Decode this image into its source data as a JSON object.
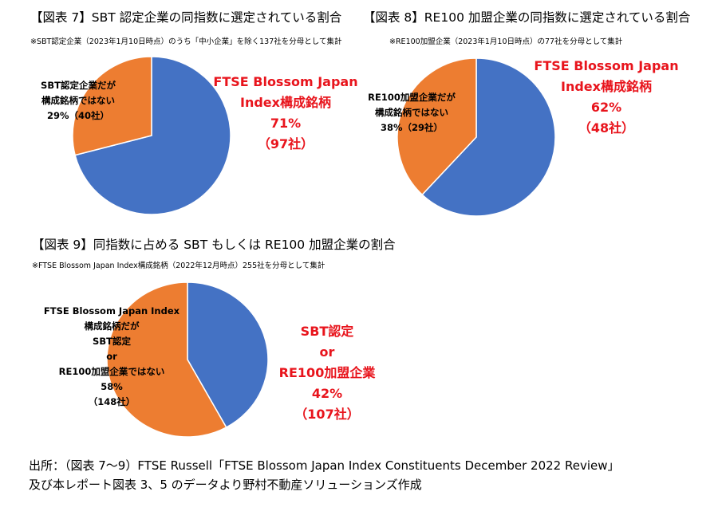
{
  "colors": {
    "blue": "#4472c4",
    "orange": "#ed7d31",
    "red": "#e8141c"
  },
  "chart_data": [
    {
      "type": "pie",
      "title": "【図表 7】SBT 認定企業の同指数に選定されている割合",
      "subtitle": "※SBT認定企業（2023年1月10日時点）のうち「中小企業」を除く137社を分母として集計",
      "slices": [
        {
          "value": 71,
          "count": 97,
          "color": "#4472c4",
          "label_lines": [
            "FTSE Blossom Japan",
            "Index構成銘柄",
            "71%",
            "（97社）"
          ]
        },
        {
          "value": 29,
          "count": 40,
          "color": "#ed7d31",
          "label_lines": [
            "SBT認定企業だが",
            "構成銘柄ではない",
            "29%（40社）"
          ]
        }
      ]
    },
    {
      "type": "pie",
      "title": "【図表 8】RE100 加盟企業の同指数に選定されている割合",
      "subtitle": "※RE100加盟企業（2023年1月10日時点）の77社を分母として集計",
      "slices": [
        {
          "value": 62,
          "count": 48,
          "color": "#4472c4",
          "label_lines": [
            "FTSE Blossom Japan",
            "Index構成銘柄",
            "62%",
            "（48社）"
          ]
        },
        {
          "value": 38,
          "count": 29,
          "color": "#ed7d31",
          "label_lines": [
            "RE100加盟企業だが",
            "構成銘柄ではない",
            "38%（29社）"
          ]
        }
      ]
    },
    {
      "type": "pie",
      "title": "【図表 9】同指数に占める SBT もしくは RE100 加盟企業の割合",
      "subtitle": "※FTSE Blossom Japan Index構成銘柄（2022年12月時点）255社を分母として集計",
      "slices": [
        {
          "value": 42,
          "count": 107,
          "color": "#4472c4",
          "label_lines": [
            "SBT認定",
            "or",
            "RE100加盟企業",
            "42%",
            "（107社）"
          ]
        },
        {
          "value": 58,
          "count": 148,
          "color": "#ed7d31",
          "label_lines": [
            "FTSE Blossom Japan Index",
            "構成銘柄だが",
            "SBT認定",
            "or",
            "RE100加盟企業ではない",
            "58%",
            "（148社）"
          ]
        }
      ]
    }
  ],
  "source": [
    "出所：（図表 7〜9）FTSE Russell「FTSE Blossom Japan Index Constituents December 2022 Review」",
    "及び本レポート図表 3、5 のデータより野村不動産ソリューションズ作成"
  ]
}
